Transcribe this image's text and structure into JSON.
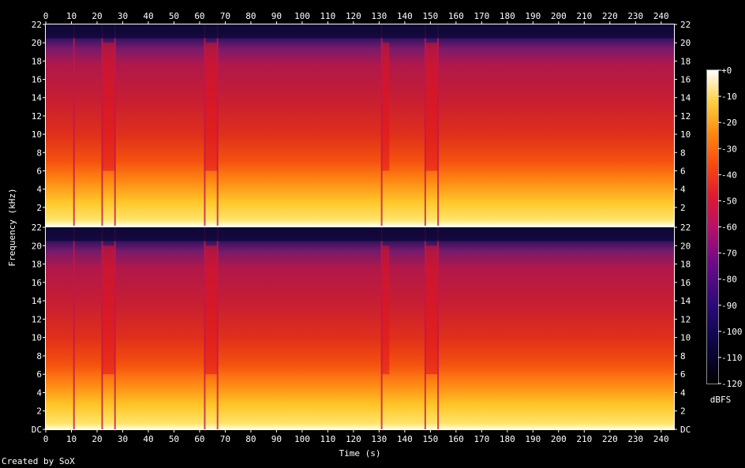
{
  "chart_data": {
    "type": "heatmap",
    "xlabel": "Time (s)",
    "ylabel": "Frequency (kHz)",
    "x_ticks": [
      0,
      10,
      20,
      30,
      40,
      50,
      60,
      70,
      80,
      90,
      100,
      110,
      120,
      130,
      140,
      150,
      160,
      170,
      180,
      190,
      200,
      210,
      220,
      230,
      240
    ],
    "xlim": [
      0,
      245
    ],
    "channels": [
      {
        "y_ticks": [
          "22",
          "20",
          "18",
          "16",
          "14",
          "12",
          "10",
          "8",
          "6",
          "4",
          "2"
        ]
      },
      {
        "y_ticks": [
          "22",
          "20",
          "18",
          "16",
          "14",
          "12",
          "10",
          "8",
          "6",
          "4",
          "2",
          "DC"
        ]
      }
    ],
    "y_values_khz": [
      22,
      20,
      18,
      16,
      14,
      12,
      10,
      8,
      6,
      4,
      2
    ],
    "ylim_khz": [
      0,
      22
    ],
    "colorbar": {
      "label": "dBFS",
      "ticks": [
        "+0",
        "-10",
        "-20",
        "-30",
        "-40",
        "-50",
        "-60",
        "-70",
        "-80",
        "-90",
        "-100",
        "-110",
        "-120"
      ],
      "range_db": [
        -120,
        0
      ]
    },
    "low_energy_times_s": [
      11,
      22,
      27,
      62,
      67,
      131,
      148,
      153
    ],
    "high_band_gaps_s": [
      [
        22,
        27
      ],
      [
        62,
        67
      ],
      [
        131,
        134
      ],
      [
        148,
        153
      ]
    ]
  },
  "footer": "Created by SoX"
}
